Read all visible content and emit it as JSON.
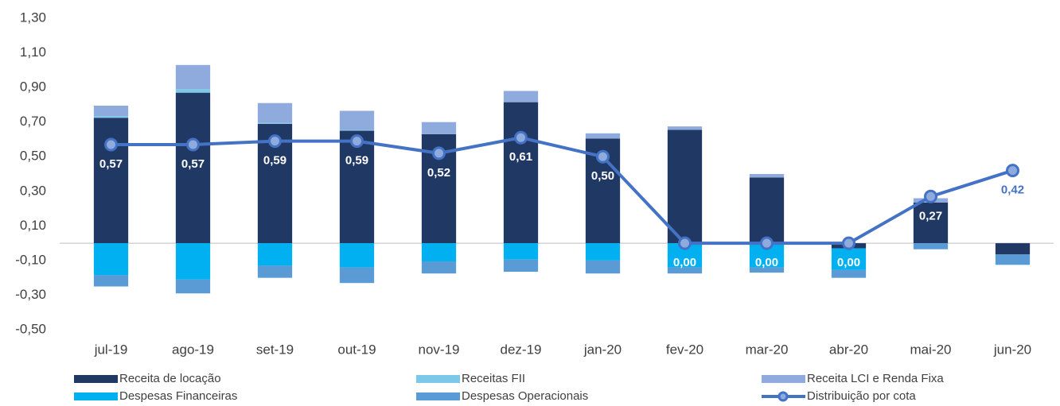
{
  "chart_data": {
    "type": "bar",
    "categories": [
      "jul-19",
      "ago-19",
      "set-19",
      "out-19",
      "nov-19",
      "dez-19",
      "jan-20",
      "fev-20",
      "mar-20",
      "abr-20",
      "mai-20",
      "jun-20"
    ],
    "series": [
      {
        "name": "Receita de locação",
        "color": "#203864",
        "values": [
          0.725,
          0.87,
          0.69,
          0.65,
          0.63,
          0.815,
          0.605,
          0.655,
          0.38,
          -0.03,
          0.235,
          -0.065
        ]
      },
      {
        "name": "Receitas FII",
        "color": "#7cc8e8",
        "values": [
          0.01,
          0.02,
          0.005,
          0.005,
          0,
          0,
          0,
          0,
          0,
          0,
          0,
          0
        ]
      },
      {
        "name": "Receita LCI e Renda Fixa",
        "color": "#8faadc",
        "values": [
          0.06,
          0.14,
          0.115,
          0.11,
          0.07,
          0.065,
          0.03,
          0.02,
          0.02,
          0,
          0.025,
          0
        ]
      },
      {
        "name": "Despesas Financeiras",
        "color": "#00b0f0",
        "values": [
          -0.185,
          -0.21,
          -0.13,
          -0.14,
          -0.105,
          -0.095,
          -0.1,
          -0.14,
          -0.14,
          -0.125,
          0,
          0
        ]
      },
      {
        "name": "Despesas Operacionais",
        "color": "#5b9bd5",
        "values": [
          -0.065,
          -0.08,
          -0.07,
          -0.09,
          -0.07,
          -0.07,
          -0.075,
          -0.035,
          -0.03,
          -0.045,
          -0.035,
          -0.06
        ]
      },
      {
        "name": "Distribuição por cota",
        "color": "#4472c4",
        "type": "line",
        "values": [
          0.57,
          0.57,
          0.59,
          0.59,
          0.52,
          0.61,
          0.5,
          0,
          0,
          0,
          0.27,
          0.42
        ],
        "value_labels": [
          "0,57",
          "0,57",
          "0,59",
          "0,59",
          "0,52",
          "0,61",
          "0,50",
          "0,00",
          "0,00",
          "0,00",
          "0,27",
          "0,42"
        ]
      }
    ],
    "ylim": [
      -0.5,
      1.3
    ],
    "yticks": [
      {
        "value": 1.3,
        "label": "1,30"
      },
      {
        "value": 1.1,
        "label": "1,10"
      },
      {
        "value": 0.9,
        "label": "0,90"
      },
      {
        "value": 0.7,
        "label": "0,70"
      },
      {
        "value": 0.5,
        "label": "0,50"
      },
      {
        "value": 0.3,
        "label": "0,30"
      },
      {
        "value": 0.1,
        "label": "0,10"
      },
      {
        "value": -0.1,
        "label": "-0,10"
      },
      {
        "value": -0.3,
        "label": "-0,30"
      },
      {
        "value": -0.5,
        "label": "-0,50"
      }
    ],
    "grid": false
  }
}
